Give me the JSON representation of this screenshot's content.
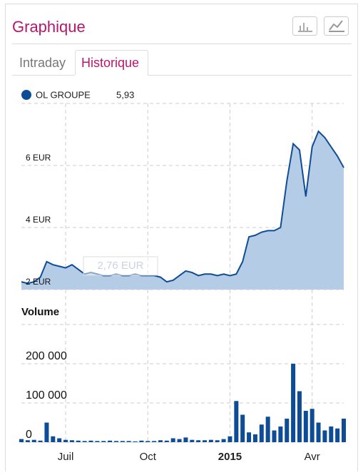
{
  "header": {
    "title": "Graphique"
  },
  "tabs": [
    "Intraday",
    "Historique"
  ],
  "chart_data": [
    {
      "type": "area",
      "series": [
        {
          "name": "OL GROUPE",
          "color": "#0e4d96",
          "legend_value": 5.93,
          "legend_value_label": "5,93",
          "values": [
            2.25,
            2.2,
            2.25,
            2.4,
            2.9,
            2.8,
            2.75,
            2.7,
            2.8,
            2.65,
            2.5,
            2.55,
            2.5,
            2.45,
            2.45,
            2.5,
            2.45,
            2.45,
            2.5,
            2.45,
            2.45,
            2.45,
            2.4,
            2.25,
            2.3,
            2.45,
            2.6,
            2.55,
            2.45,
            2.5,
            2.5,
            2.45,
            2.5,
            2.45,
            2.5,
            2.9,
            3.7,
            3.75,
            3.85,
            3.9,
            3.9,
            4.0,
            5.5,
            6.7,
            6.5,
            5.0,
            6.6,
            7.1,
            6.9,
            6.6,
            6.3,
            5.93
          ]
        }
      ],
      "annotation": {
        "value": 2.76,
        "label": "2,76 EUR"
      },
      "ylim": [
        2,
        8
      ],
      "yticks": [
        {
          "value": 2,
          "label": "2 EUR"
        },
        {
          "value": 4,
          "label": "4 EUR"
        },
        {
          "value": 6,
          "label": "6 EUR"
        }
      ],
      "grid": true
    },
    {
      "type": "bar",
      "title": "Volume",
      "color": "#0e4d96",
      "categories": [
        null,
        null,
        null,
        null,
        null,
        null,
        null,
        "Juil",
        null,
        null,
        null,
        null,
        null,
        null,
        null,
        null,
        null,
        null,
        null,
        null,
        "Oct",
        null,
        null,
        null,
        null,
        null,
        null,
        null,
        null,
        null,
        null,
        null,
        null,
        "2015",
        null,
        null,
        null,
        null,
        null,
        null,
        null,
        null,
        null,
        null,
        null,
        null,
        "Avr",
        null,
        null,
        null,
        null,
        null
      ],
      "values": [
        8000,
        5000,
        6000,
        4000,
        50000,
        15000,
        10000,
        6000,
        5000,
        4000,
        3000,
        4000,
        3000,
        3000,
        4000,
        3000,
        3000,
        3000,
        2000,
        4000,
        3000,
        3000,
        5000,
        4000,
        10000,
        8000,
        12000,
        6000,
        5000,
        5000,
        6000,
        5000,
        8000,
        15000,
        105000,
        70000,
        25000,
        20000,
        45000,
        65000,
        30000,
        40000,
        60000,
        200000,
        130000,
        80000,
        85000,
        50000,
        30000,
        40000,
        35000,
        60000
      ],
      "ylim": [
        0,
        300000
      ],
      "yticks": [
        0,
        {
          "value": 100000,
          "label": "100 000"
        },
        {
          "value": 200000,
          "label": "200 000"
        }
      ],
      "grid": true
    }
  ]
}
